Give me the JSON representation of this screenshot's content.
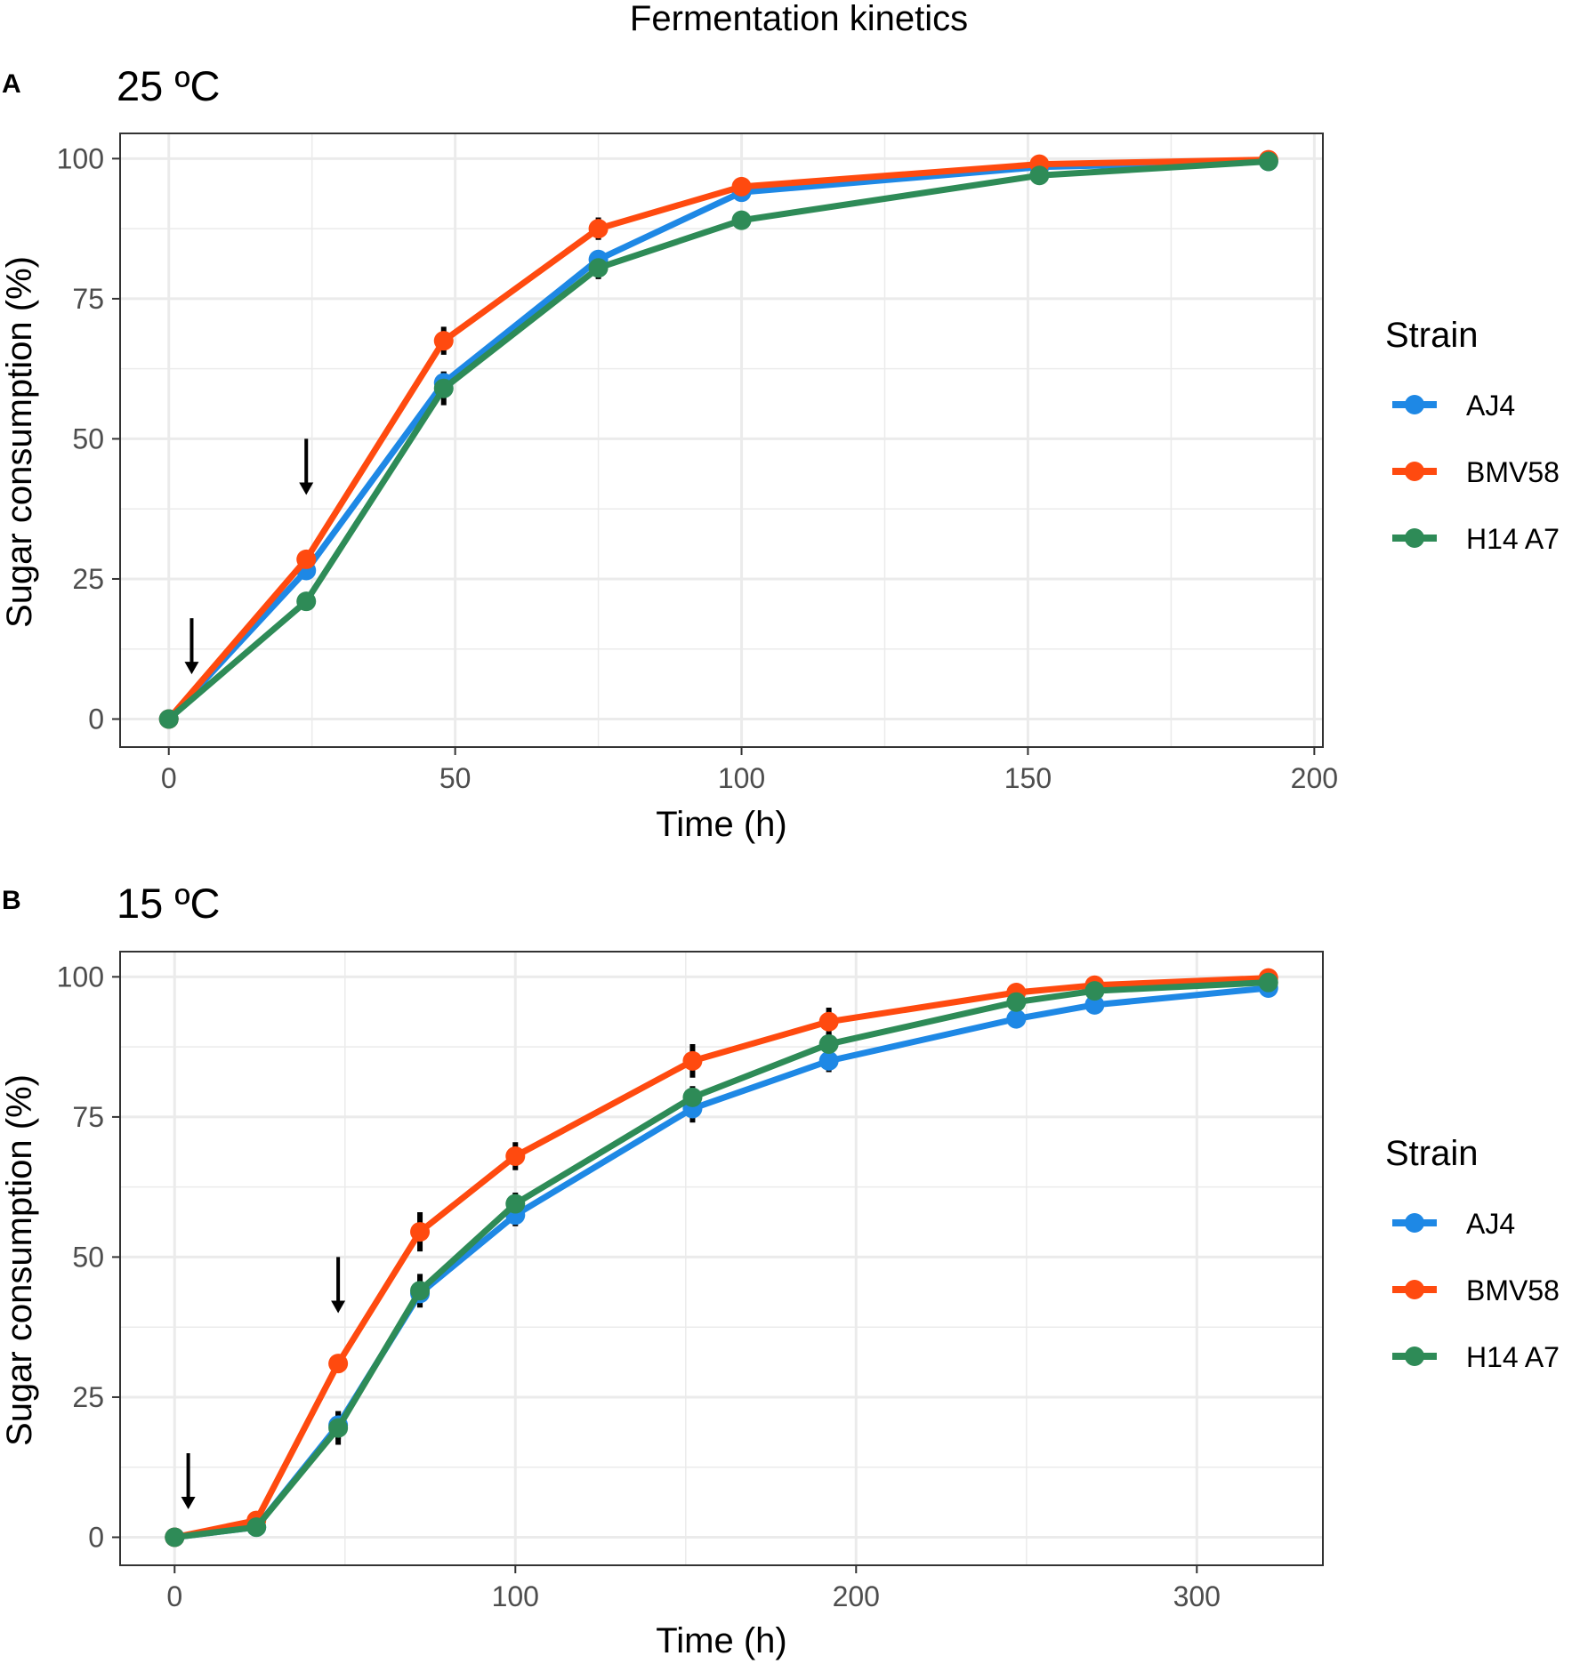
{
  "figure_title": "Fermentation kinetics",
  "colors": {
    "AJ4": "#1E88E5",
    "BMV58": "#FF4A0F",
    "H14 A7": "#2E8B57",
    "grid": "#EBEBEB",
    "axis": "#333333",
    "tick_text": "#4D4D4D",
    "arrow": "#000000"
  },
  "chart_data": [
    {
      "type": "line",
      "panel_label": "A",
      "title": "25 ºC",
      "xlabel": "Time (h)",
      "ylabel": "Sugar consumption (%)",
      "xlim": [
        -8.5,
        201.5
      ],
      "ylim": [
        -5,
        104.5
      ],
      "xticks": [
        0,
        50,
        100,
        150,
        200
      ],
      "xticks_minor": [
        25,
        75,
        125,
        175
      ],
      "yticks": [
        0,
        25,
        50,
        75,
        100
      ],
      "yticks_minor": [
        12.5,
        37.5,
        62.5,
        87.5
      ],
      "grid": true,
      "legend": {
        "title": "Strain",
        "position": "right",
        "entries": [
          "AJ4",
          "BMV58",
          "H14 A7"
        ]
      },
      "series": [
        {
          "name": "AJ4",
          "x": [
            0,
            24,
            48,
            75,
            100,
            152,
            192
          ],
          "values": [
            0,
            26.5,
            60,
            82,
            94,
            98.5,
            99.5
          ],
          "err": [
            0,
            1.5,
            2,
            1.5,
            1,
            0.5,
            0.3
          ]
        },
        {
          "name": "BMV58",
          "x": [
            0,
            24,
            48,
            75,
            100,
            152,
            192
          ],
          "values": [
            0,
            28.5,
            67.5,
            87.5,
            95,
            99,
            99.8
          ],
          "err": [
            0,
            1,
            2.5,
            2,
            1,
            0.3,
            0.2
          ]
        },
        {
          "name": "H14 A7",
          "x": [
            0,
            24,
            48,
            75,
            100,
            152,
            192
          ],
          "values": [
            0,
            21,
            59,
            80.5,
            89,
            97,
            99.5
          ],
          "err": [
            0,
            1,
            3,
            2,
            1,
            0.5,
            0.3
          ]
        }
      ],
      "annotations": [
        {
          "type": "arrow",
          "x": 4,
          "y_from": 18,
          "y_to": 8
        },
        {
          "type": "arrow",
          "x": 24,
          "y_from": 50,
          "y_to": 40
        }
      ]
    },
    {
      "type": "line",
      "panel_label": "B",
      "title": "15 ºC",
      "xlabel": "Time (h)",
      "ylabel": "Sugar consumption (%)",
      "xlim": [
        -16,
        337
      ],
      "ylim": [
        -5,
        104.5
      ],
      "xticks": [
        0,
        100,
        200,
        300
      ],
      "xticks_minor": [
        50,
        150,
        250
      ],
      "yticks": [
        0,
        25,
        50,
        75,
        100
      ],
      "yticks_minor": [
        12.5,
        37.5,
        62.5,
        87.5
      ],
      "grid": true,
      "legend": {
        "title": "Strain",
        "position": "right",
        "entries": [
          "AJ4",
          "BMV58",
          "H14 A7"
        ]
      },
      "series": [
        {
          "name": "AJ4",
          "x": [
            0,
            24,
            48,
            72,
            100,
            152,
            192,
            247,
            270,
            321
          ],
          "values": [
            0,
            1.8,
            20,
            43.5,
            57.5,
            76.5,
            85,
            92.5,
            95,
            98
          ],
          "err": [
            0,
            0.5,
            2.5,
            2.5,
            2,
            2.5,
            2,
            1.5,
            1,
            0.5
          ]
        },
        {
          "name": "BMV58",
          "x": [
            0,
            24,
            48,
            72,
            100,
            152,
            192,
            247,
            270,
            321
          ],
          "values": [
            0,
            3,
            31,
            54.5,
            68,
            85,
            92,
            97.2,
            98.5,
            99.8
          ],
          "err": [
            0,
            0.5,
            1.5,
            3.5,
            2.5,
            3,
            2.5,
            1,
            0.8,
            0.3
          ]
        },
        {
          "name": "H14 A7",
          "x": [
            0,
            24,
            48,
            72,
            100,
            152,
            192,
            247,
            270,
            321
          ],
          "values": [
            0,
            1.8,
            19.5,
            44,
            59.5,
            78.5,
            88,
            95.5,
            97.5,
            99
          ],
          "err": [
            0,
            0.5,
            3,
            3,
            2,
            2,
            2,
            1,
            0.8,
            0.4
          ]
        }
      ],
      "annotations": [
        {
          "type": "arrow",
          "x": 4,
          "y_from": 15,
          "y_to": 5
        },
        {
          "type": "arrow",
          "x": 48,
          "y_from": 50,
          "y_to": 40
        }
      ]
    }
  ]
}
